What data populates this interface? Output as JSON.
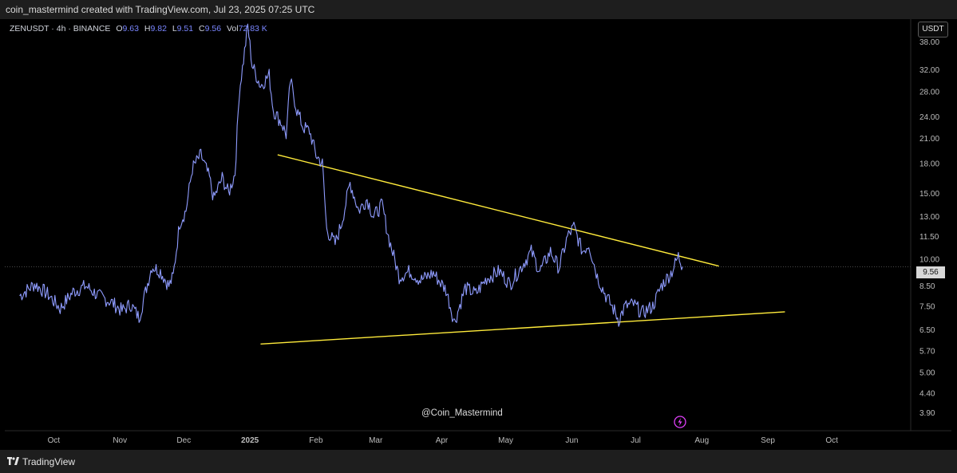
{
  "header": {
    "caption": "coin_mastermind created with TradingView.com, Jul 23, 2025 07:25 UTC"
  },
  "legend": {
    "symbol": "ZENUSDT · 4h · BINANCE",
    "o_label": "O",
    "o_value": "9.63",
    "h_label": "H",
    "h_value": "9.82",
    "l_label": "L",
    "l_value": "9.51",
    "c_label": "C",
    "c_value": "9.56",
    "vol_label": "Vol",
    "vol_value": "72.83 K"
  },
  "unit_label": "USDT",
  "last_price_label": "9.56",
  "watermark": "@Coin_Mastermind",
  "footer": {
    "brand": "TradingView"
  },
  "colors": {
    "background": "#000000",
    "price": "#8f9cff",
    "trendline": "#ffeb3b",
    "axis_text": "#bdbdbd",
    "bolt": "#e040fb"
  },
  "icons": {
    "bolt": "lightning-bolt-icon",
    "logo": "tradingview-logo-icon"
  },
  "chart_data": {
    "type": "line",
    "scale": "log",
    "ylim": [
      3.6,
      42
    ],
    "yticks": [
      {
        "value": 38.0,
        "label": "38.00"
      },
      {
        "value": 32.0,
        "label": "32.00"
      },
      {
        "value": 28.0,
        "label": "28.00"
      },
      {
        "value": 24.0,
        "label": "24.00"
      },
      {
        "value": 21.0,
        "label": "21.00"
      },
      {
        "value": 18.0,
        "label": "18.00"
      },
      {
        "value": 15.0,
        "label": "15.00"
      },
      {
        "value": 13.0,
        "label": "13.00"
      },
      {
        "value": 11.5,
        "label": "11.50"
      },
      {
        "value": 10.0,
        "label": "10.00"
      },
      {
        "value": 8.5,
        "label": "8.50"
      },
      {
        "value": 7.5,
        "label": "7.50"
      },
      {
        "value": 6.5,
        "label": "6.50"
      },
      {
        "value": 5.7,
        "label": "5.70"
      },
      {
        "value": 5.0,
        "label": "5.00"
      },
      {
        "value": 4.4,
        "label": "4.40"
      },
      {
        "value": 3.9,
        "label": "3.90"
      }
    ],
    "xticks": [
      {
        "date": "2024-10-01",
        "label": "Oct"
      },
      {
        "date": "2024-11-01",
        "label": "Nov"
      },
      {
        "date": "2024-12-01",
        "label": "Dec"
      },
      {
        "date": "2025-01-01",
        "label": "2025"
      },
      {
        "date": "2025-02-01",
        "label": "Feb"
      },
      {
        "date": "2025-03-01",
        "label": "Mar"
      },
      {
        "date": "2025-04-01",
        "label": "Apr"
      },
      {
        "date": "2025-05-01",
        "label": "May"
      },
      {
        "date": "2025-06-01",
        "label": "Jun"
      },
      {
        "date": "2025-07-01",
        "label": "Jul"
      },
      {
        "date": "2025-08-01",
        "label": "Aug"
      },
      {
        "date": "2025-09-01",
        "label": "Sep"
      },
      {
        "date": "2025-10-01",
        "label": "Oct"
      }
    ],
    "last_price": 9.56,
    "series": [
      {
        "points": [
          [
            "2024-09-15",
            8.0
          ],
          [
            "2024-09-22",
            8.6
          ],
          [
            "2024-09-28",
            8.1
          ],
          [
            "2024-10-04",
            7.4
          ],
          [
            "2024-10-10",
            8.2
          ],
          [
            "2024-10-16",
            8.5
          ],
          [
            "2024-10-22",
            8.0
          ],
          [
            "2024-10-28",
            7.7
          ],
          [
            "2024-11-02",
            7.3
          ],
          [
            "2024-11-06",
            7.6
          ],
          [
            "2024-11-10",
            7.0
          ],
          [
            "2024-11-13",
            8.2
          ],
          [
            "2024-11-16",
            9.6
          ],
          [
            "2024-11-20",
            9.3
          ],
          [
            "2024-11-24",
            8.5
          ],
          [
            "2024-11-26",
            9.0
          ],
          [
            "2024-11-29",
            12.5
          ],
          [
            "2024-12-02",
            13.5
          ],
          [
            "2024-12-05",
            17.5
          ],
          [
            "2024-12-09",
            19.0
          ],
          [
            "2024-12-13",
            16.5
          ],
          [
            "2024-12-15",
            14.5
          ],
          [
            "2024-12-19",
            16.5
          ],
          [
            "2024-12-22",
            15.0
          ],
          [
            "2024-12-25",
            17.0
          ],
          [
            "2024-12-27",
            28.0
          ],
          [
            "2024-12-29",
            34.0
          ],
          [
            "2024-12-31",
            42.0
          ],
          [
            "2025-01-02",
            33.0
          ],
          [
            "2025-01-06",
            29.0
          ],
          [
            "2025-01-10",
            31.0
          ],
          [
            "2025-01-12",
            25.0
          ],
          [
            "2025-01-16",
            23.0
          ],
          [
            "2025-01-18",
            21.5
          ],
          [
            "2025-01-20",
            30.0
          ],
          [
            "2025-01-23",
            25.0
          ],
          [
            "2025-01-26",
            22.5
          ],
          [
            "2025-01-29",
            22.0
          ],
          [
            "2025-02-01",
            19.0
          ],
          [
            "2025-02-04",
            18.0
          ],
          [
            "2025-02-06",
            12.0
          ],
          [
            "2025-02-10",
            11.0
          ],
          [
            "2025-02-13",
            12.5
          ],
          [
            "2025-02-17",
            16.0
          ],
          [
            "2025-02-21",
            13.5
          ],
          [
            "2025-02-25",
            14.5
          ],
          [
            "2025-02-28",
            13.0
          ],
          [
            "2025-03-04",
            14.0
          ],
          [
            "2025-03-07",
            11.5
          ],
          [
            "2025-03-12",
            9.0
          ],
          [
            "2025-03-17",
            9.3
          ],
          [
            "2025-03-22",
            8.8
          ],
          [
            "2025-03-28",
            9.2
          ],
          [
            "2025-04-03",
            8.3
          ],
          [
            "2025-04-07",
            6.8
          ],
          [
            "2025-04-12",
            8.4
          ],
          [
            "2025-04-17",
            8.1
          ],
          [
            "2025-04-22",
            8.9
          ],
          [
            "2025-04-28",
            9.3
          ],
          [
            "2025-05-03",
            8.6
          ],
          [
            "2025-05-08",
            9.5
          ],
          [
            "2025-05-13",
            10.5
          ],
          [
            "2025-05-17",
            9.3
          ],
          [
            "2025-05-22",
            10.5
          ],
          [
            "2025-05-26",
            9.5
          ],
          [
            "2025-05-30",
            11.5
          ],
          [
            "2025-06-02",
            12.2
          ],
          [
            "2025-06-06",
            10.5
          ],
          [
            "2025-06-09",
            11.0
          ],
          [
            "2025-06-13",
            9.0
          ],
          [
            "2025-06-17",
            8.0
          ],
          [
            "2025-06-21",
            7.3
          ],
          [
            "2025-06-23",
            6.9
          ],
          [
            "2025-06-26",
            7.5
          ],
          [
            "2025-06-30",
            7.6
          ],
          [
            "2025-07-04",
            7.2
          ],
          [
            "2025-07-09",
            7.5
          ],
          [
            "2025-07-13",
            8.5
          ],
          [
            "2025-07-18",
            9.3
          ],
          [
            "2025-07-21",
            10.2
          ],
          [
            "2025-07-23",
            9.56
          ]
        ]
      }
    ],
    "trendlines": [
      {
        "name": "",
        "from": [
          "2025-01-14",
          19.0
        ],
        "to": [
          "2025-08-09",
          9.6
        ]
      },
      {
        "name": "",
        "from": [
          "2025-01-06",
          5.95
        ],
        "to": [
          "2025-09-09",
          7.25
        ]
      }
    ]
  }
}
